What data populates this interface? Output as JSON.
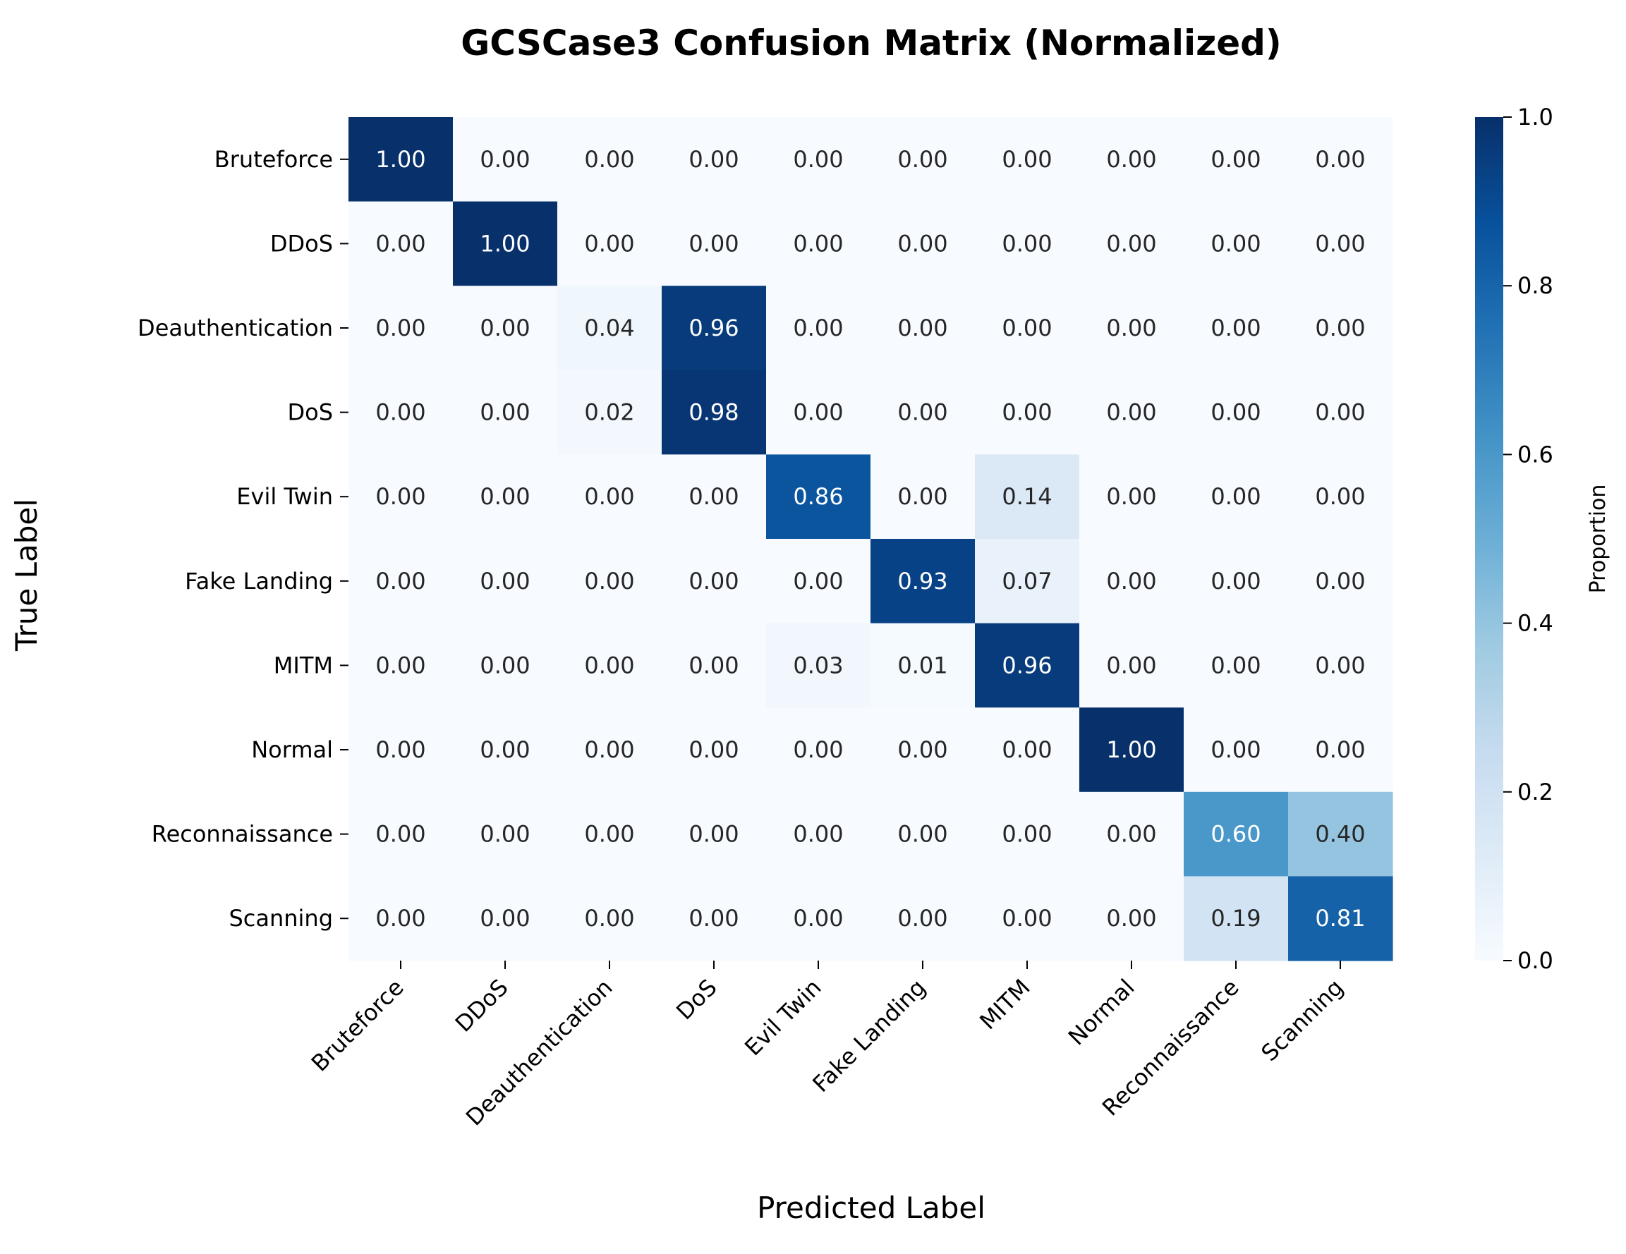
{
  "chart_data": {
    "type": "heatmap",
    "title": "GCSCase3 Confusion Matrix (Normalized)",
    "xlabel": "Predicted Label",
    "ylabel": "True Label",
    "x_categories": [
      "Bruteforce",
      "DDoS",
      "Deauthentication",
      "DoS",
      "Evil Twin",
      "Fake Landing",
      "MITM",
      "Normal",
      "Reconnaissance",
      "Scanning"
    ],
    "y_categories": [
      "Bruteforce",
      "DDoS",
      "Deauthentication",
      "DoS",
      "Evil Twin",
      "Fake Landing",
      "MITM",
      "Normal",
      "Reconnaissance",
      "Scanning"
    ],
    "values": [
      [
        1.0,
        0.0,
        0.0,
        0.0,
        0.0,
        0.0,
        0.0,
        0.0,
        0.0,
        0.0
      ],
      [
        0.0,
        1.0,
        0.0,
        0.0,
        0.0,
        0.0,
        0.0,
        0.0,
        0.0,
        0.0
      ],
      [
        0.0,
        0.0,
        0.04,
        0.96,
        0.0,
        0.0,
        0.0,
        0.0,
        0.0,
        0.0
      ],
      [
        0.0,
        0.0,
        0.02,
        0.98,
        0.0,
        0.0,
        0.0,
        0.0,
        0.0,
        0.0
      ],
      [
        0.0,
        0.0,
        0.0,
        0.0,
        0.86,
        0.0,
        0.14,
        0.0,
        0.0,
        0.0
      ],
      [
        0.0,
        0.0,
        0.0,
        0.0,
        0.0,
        0.93,
        0.07,
        0.0,
        0.0,
        0.0
      ],
      [
        0.0,
        0.0,
        0.0,
        0.0,
        0.03,
        0.01,
        0.96,
        0.0,
        0.0,
        0.0
      ],
      [
        0.0,
        0.0,
        0.0,
        0.0,
        0.0,
        0.0,
        0.0,
        1.0,
        0.0,
        0.0
      ],
      [
        0.0,
        0.0,
        0.0,
        0.0,
        0.0,
        0.0,
        0.0,
        0.0,
        0.6,
        0.4
      ],
      [
        0.0,
        0.0,
        0.0,
        0.0,
        0.0,
        0.0,
        0.0,
        0.0,
        0.19,
        0.81
      ]
    ],
    "value_format": "2 decimals",
    "colormap": "Blues",
    "colorbar": {
      "label": "Proportion",
      "range": [
        0.0,
        1.0
      ],
      "ticks": [
        0.0,
        0.2,
        0.4,
        0.6,
        0.8,
        1.0
      ],
      "tick_labels": [
        "0.0",
        "0.2",
        "0.4",
        "0.6",
        "0.8",
        "1.0"
      ]
    },
    "grid": false,
    "colors": {
      "low": "#f7fbff",
      "high": "#08306b",
      "text_dark": "#262626",
      "text_light": "#ffffff"
    }
  }
}
